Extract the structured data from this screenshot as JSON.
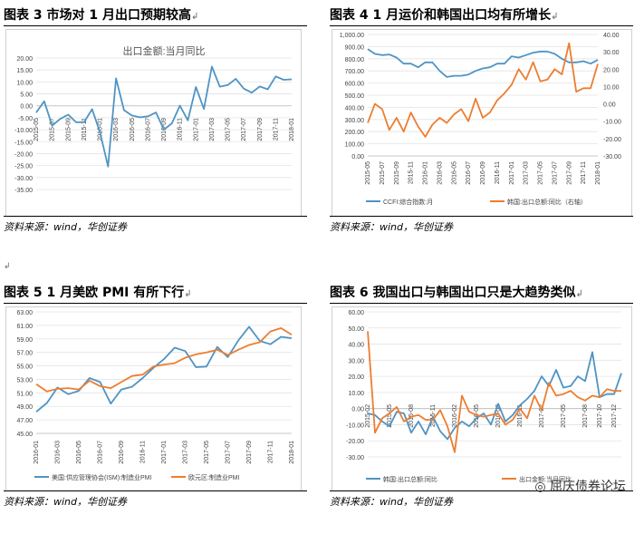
{
  "panels": [
    {
      "title": "图表 3   市场对 1 月出口预期较高",
      "source": "资料来源：wind，华创证券"
    },
    {
      "title": "图表 4   1 月运价和韩国出口均有所增长",
      "source": "资料来源：wind，华创证券"
    },
    {
      "title": "图表 5   1 月美欧 PMI 有所下行",
      "source": "资料来源：wind，华创证券"
    },
    {
      "title": "图表 6   我国出口与韩国出口只是大趋势类似",
      "source": "资料来源：wind，华创证券"
    }
  ],
  "watermark": "屈庆债券论坛",
  "chart_data": [
    {
      "type": "line",
      "title": "出口金额:当月同比",
      "x": [
        "2015-05",
        "2015-06",
        "2015-07",
        "2015-08",
        "2015-09",
        "2015-10",
        "2015-11",
        "2015-12",
        "2016-01",
        "2016-02",
        "2016-03",
        "2016-04",
        "2016-05",
        "2016-06",
        "2016-07",
        "2016-08",
        "2016-09",
        "2016-10",
        "2016-11",
        "2016-12",
        "2017-01",
        "2017-02",
        "2017-03",
        "2017-04",
        "2017-05",
        "2017-06",
        "2017-07",
        "2017-08",
        "2017-09",
        "2017-10",
        "2017-11",
        "2017-12",
        "2018-01"
      ],
      "tick_labels": [
        "2015-05",
        "2015-07",
        "2015-09",
        "2015-11",
        "2016-01",
        "2016-03",
        "2016-05",
        "2016-07",
        "2016-09",
        "2016-11",
        "2017-01",
        "2017-03",
        "2017-05",
        "2017-07",
        "2017-09",
        "2017-11",
        "2018-01"
      ],
      "series": [
        {
          "values": [
            -2.8,
            1.9,
            -8.3,
            -5.5,
            -3.7,
            -6.9,
            -6.8,
            -1.4,
            -11.2,
            -25.4,
            11.5,
            -1.8,
            -4.1,
            -4.8,
            -4.4,
            -2.8,
            -10.0,
            -7.3,
            0.1,
            -6.1,
            7.9,
            -1.3,
            16.4,
            8.0,
            8.7,
            11.3,
            7.2,
            5.5,
            8.1,
            6.9,
            12.3,
            10.9,
            11.1
          ],
          "color": "#4f94c4"
        }
      ],
      "ylim": [
        -35,
        20
      ],
      "yticks": [
        "20.00",
        "15.00",
        "10.00",
        "5.00",
        "0.00",
        "-5.00",
        "-10.00",
        "-15.00",
        "-20.00",
        "-25.00",
        "-30.00",
        "-35.00"
      ]
    },
    {
      "type": "line",
      "x": [
        "2015-05",
        "2015-06",
        "2015-07",
        "2015-08",
        "2015-09",
        "2015-10",
        "2015-11",
        "2015-12",
        "2016-01",
        "2016-02",
        "2016-03",
        "2016-04",
        "2016-05",
        "2016-06",
        "2016-07",
        "2016-08",
        "2016-09",
        "2016-10",
        "2016-11",
        "2016-12",
        "2017-01",
        "2017-02",
        "2017-03",
        "2017-04",
        "2017-05",
        "2017-06",
        "2017-07",
        "2017-08",
        "2017-09",
        "2017-10",
        "2017-11",
        "2017-12",
        "2018-01"
      ],
      "tick_labels": [
        "2015-05",
        "2015-07",
        "2015-09",
        "2015-11",
        "2016-01",
        "2016-03",
        "2016-05",
        "2016-07",
        "2016-09",
        "2016-11",
        "2017-01",
        "2017-03",
        "2017-05",
        "2017-07",
        "2017-09",
        "2017-11",
        "2018-01"
      ],
      "series": [
        {
          "name": "CCFI:综合指数:月",
          "axis": "left",
          "color": "#4f94c4",
          "values": [
            880,
            840,
            830,
            835,
            810,
            760,
            760,
            730,
            770,
            770,
            700,
            650,
            660,
            660,
            670,
            700,
            720,
            730,
            760,
            760,
            820,
            810,
            830,
            850,
            860,
            860,
            840,
            800,
            770,
            770,
            780,
            760,
            790
          ]
        },
        {
          "name": "韩国:出口总额:同比（右轴）",
          "axis": "right",
          "color": "#ed7d31",
          "values": [
            -11,
            0,
            -3,
            -15,
            -8,
            -16,
            -5,
            -13,
            -19,
            -12,
            -8,
            -11,
            -6,
            -3,
            -10,
            3,
            -8,
            -5,
            2,
            6,
            11,
            20,
            14,
            24,
            13,
            14,
            20,
            17,
            35,
            7,
            9,
            9,
            23
          ]
        }
      ],
      "ylim_left": [
        0,
        1000
      ],
      "ylim_right": [
        -30,
        40
      ],
      "yticks_left": [
        "1,000.00",
        "900.00",
        "800.00",
        "700.00",
        "600.00",
        "500.00",
        "400.00",
        "300.00",
        "200.00",
        "100.00",
        "0.00"
      ],
      "yticks_right": [
        "40.00",
        "30.00",
        "20.00",
        "10.00",
        "0.00",
        "-10.00",
        "-20.00",
        "-30.00"
      ]
    },
    {
      "type": "line",
      "x": [
        "2016-01",
        "2016-02",
        "2016-03",
        "2016-04",
        "2016-05",
        "2016-06",
        "2016-07",
        "2016-08",
        "2016-09",
        "2016-10",
        "2016-11",
        "2016-12",
        "2017-01",
        "2017-02",
        "2017-03",
        "2017-04",
        "2017-05",
        "2017-06",
        "2017-07",
        "2017-08",
        "2017-09",
        "2017-10",
        "2017-11",
        "2017-12",
        "2018-01"
      ],
      "tick_labels": [
        "2016-01",
        "2016-03",
        "2016-05",
        "2016-07",
        "2016-09",
        "2016-11",
        "2017-01",
        "2017-03",
        "2017-05",
        "2017-07",
        "2017-09",
        "2017-11",
        "2018-01"
      ],
      "series": [
        {
          "name": "美国:供应管理协会(ISM):制造业PMI",
          "color": "#4f94c4",
          "values": [
            48.2,
            49.5,
            51.8,
            50.8,
            51.3,
            53.2,
            52.6,
            49.4,
            51.5,
            51.9,
            53.2,
            54.7,
            56.0,
            57.7,
            57.2,
            54.8,
            54.9,
            57.8,
            56.3,
            58.8,
            60.8,
            58.7,
            58.2,
            59.3,
            59.1
          ]
        },
        {
          "name": "欧元区:制造业PMI",
          "color": "#ed7d31",
          "values": [
            52.3,
            51.2,
            51.6,
            51.7,
            51.5,
            52.8,
            52.0,
            51.7,
            52.6,
            53.5,
            53.7,
            54.9,
            55.2,
            55.4,
            56.2,
            56.7,
            57.0,
            57.4,
            56.6,
            57.4,
            58.1,
            58.5,
            60.1,
            60.6,
            59.6
          ]
        }
      ],
      "ylim": [
        45,
        63
      ],
      "yticks": [
        "63.00",
        "61.00",
        "59.00",
        "57.00",
        "55.00",
        "53.00",
        "51.00",
        "49.00",
        "47.00",
        "45.00"
      ]
    },
    {
      "type": "line",
      "x": [
        "2015-02",
        "2015-03",
        "2015-04",
        "2015-05",
        "2015-06",
        "2015-07",
        "2015-08",
        "2015-09",
        "2015-10",
        "2015-11",
        "2015-12",
        "2016-01",
        "2016-02",
        "2016-03",
        "2016-04",
        "2016-05",
        "2016-06",
        "2016-07",
        "2016-08",
        "2016-09",
        "2016-10",
        "2016-11",
        "2016-12",
        "2017-01",
        "2017-02",
        "2017-03",
        "2017-04",
        "2017-05",
        "2017-06",
        "2017-07",
        "2017-08",
        "2017-09",
        "2017-10",
        "2017-11",
        "2017-12",
        "2018-01"
      ],
      "tick_labels": [
        "2015-02",
        "2015-05",
        "2015-08",
        "2015-11",
        "2016-02",
        "2016-05",
        "2016-08",
        "2016-11",
        "2017-02",
        "2017-05",
        "2017-08",
        "2017-10",
        "2017-12"
      ],
      "series": [
        {
          "name": "韩国:出口总额:同比",
          "color": "#4f94c4",
          "values": [
            -3,
            -4,
            -8,
            -11,
            -2,
            -3,
            -15,
            -8,
            -16,
            -5,
            -14,
            -19,
            -12,
            -8,
            -11,
            -6,
            -3,
            -10,
            3,
            -8,
            -4,
            2,
            6,
            11,
            20,
            14,
            24,
            13,
            14,
            20,
            17,
            35,
            7,
            9,
            9,
            22
          ]
        },
        {
          "name": "出口金额:当月同比",
          "color": "#ed7d31",
          "values": [
            48,
            -15,
            -6,
            -3,
            1,
            -8,
            -5,
            -4,
            -7,
            -7,
            -1,
            -11,
            -27,
            8,
            -2,
            -4,
            -5,
            -4,
            -3,
            -10,
            -7,
            0,
            -6,
            8,
            -1,
            16,
            8,
            9,
            11,
            7,
            5,
            8,
            7,
            12,
            11,
            11
          ]
        }
      ],
      "ylim": [
        -30,
        60
      ],
      "yticks": [
        "60.00",
        "50.00",
        "40.00",
        "30.00",
        "20.00",
        "10.00",
        "0.00",
        "-10.00",
        "-20.00",
        "-30.00"
      ]
    }
  ]
}
